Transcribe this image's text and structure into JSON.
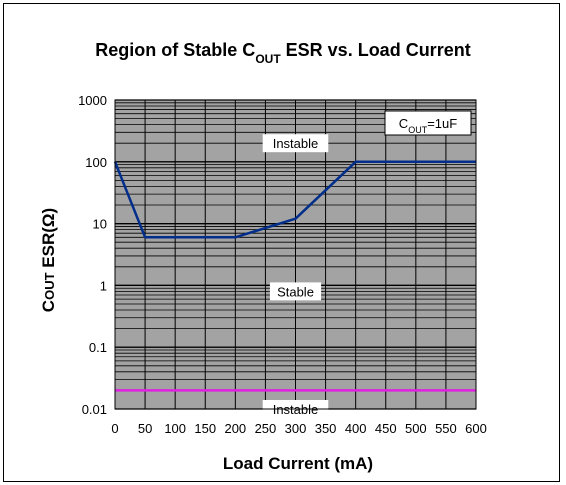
{
  "chart_data": {
    "type": "line",
    "title": {
      "prefix": "Region of Stable C",
      "subscript": "OUT",
      "suffix": " ESR vs. Load Current"
    },
    "xlabel": "Load Current (mA)",
    "ylabel": {
      "prefix": "C",
      "subscript": "OUT",
      "suffix": " ESR(Ω)"
    },
    "y_scale": "log",
    "xlim": [
      0,
      600
    ],
    "ylim": [
      0.01,
      1000
    ],
    "x_ticks": [
      0,
      50,
      100,
      150,
      200,
      250,
      300,
      350,
      400,
      450,
      500,
      550,
      600
    ],
    "x_tick_labels": [
      "0",
      "50",
      "100",
      "150",
      "200",
      "250",
      "300",
      "350",
      "400",
      "450",
      "500",
      "550",
      "600"
    ],
    "y_ticks": [
      0.01,
      0.1,
      1,
      10,
      100,
      1000
    ],
    "y_tick_labels": [
      "0.01",
      "0.1",
      "1",
      "10",
      "100",
      "1000"
    ],
    "grid": true,
    "series": [
      {
        "color": "#002e8a",
        "x": [
          0,
          50,
          200,
          300,
          400,
          600
        ],
        "y": [
          100,
          6,
          6,
          12,
          100,
          100
        ]
      },
      {
        "color": "#e020e0",
        "x": [
          0,
          600
        ],
        "y": [
          0.02,
          0.02
        ]
      }
    ],
    "annotations": [
      {
        "text": "Instable",
        "x": 300,
        "y": 200
      },
      {
        "text": "Stable",
        "x": 300,
        "y": 0.8
      },
      {
        "text": "Instable",
        "x": 300,
        "y": 0.01
      }
    ],
    "note": {
      "prefix": "C",
      "subscript": "OUT",
      "suffix": "=1uF"
    },
    "colors": {
      "plot_background": "#a3a3a3",
      "grid": "#000000"
    }
  }
}
